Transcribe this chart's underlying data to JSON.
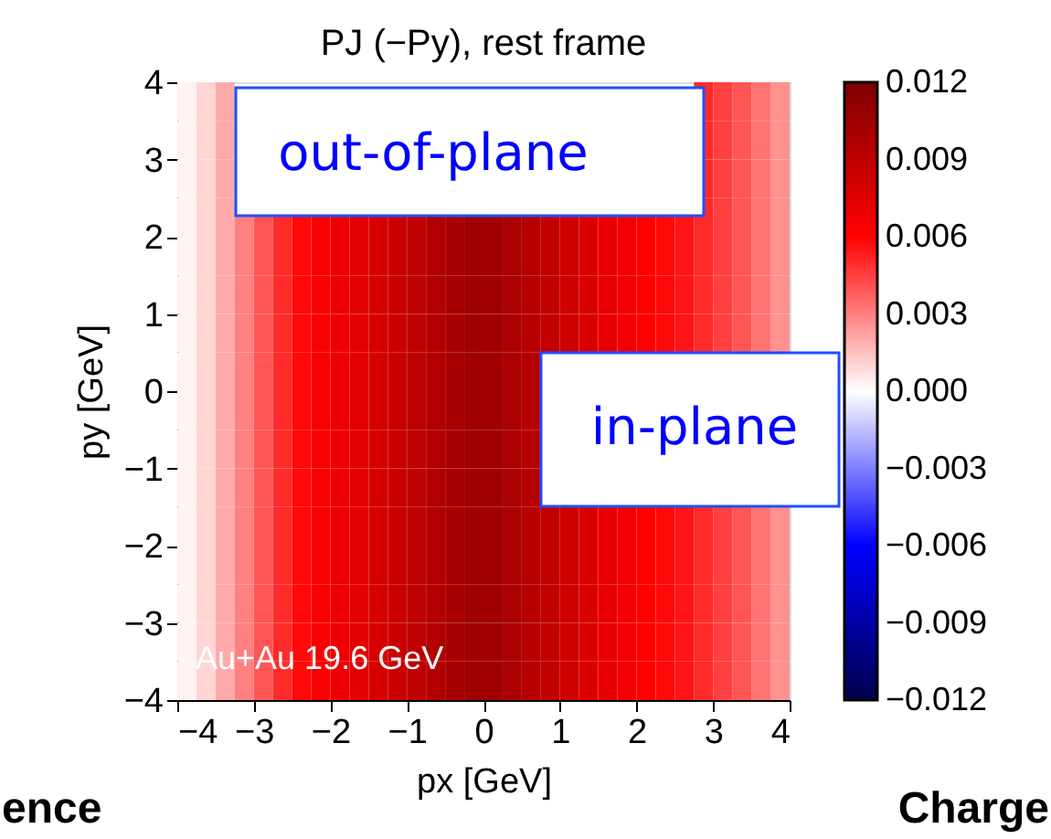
{
  "chart_data": {
    "type": "heatmap",
    "title": "PJ (−Py), rest frame",
    "xlabel": "px [GeV]",
    "ylabel": "py [GeV]",
    "annotations": [
      "out-of-plane",
      "in-plane",
      "Au+Au 19.6 GeV",
      "ence",
      "Charge"
    ],
    "x": [
      -3.875,
      -3.625,
      -3.375,
      -3.125,
      -2.875,
      -2.625,
      -2.375,
      -2.125,
      -1.875,
      -1.625,
      -1.375,
      -1.125,
      -0.875,
      -0.625,
      -0.375,
      -0.125,
      0.125,
      0.375,
      0.625,
      0.875,
      1.125,
      1.375,
      1.625,
      1.875,
      2.125,
      2.375,
      2.625,
      2.875,
      3.125,
      3.375,
      3.625,
      3.875
    ],
    "y": [
      3.75,
      3.25,
      2.75,
      2.25,
      1.75,
      1.25,
      0.75,
      0.25,
      -0.25,
      -0.75,
      -1.25,
      -1.75,
      -2.25,
      -2.75,
      -3.25,
      -3.75
    ],
    "xlim": [
      -4,
      4
    ],
    "xticks": [
      -4,
      -3,
      -2,
      -1,
      0,
      1,
      2,
      3,
      4
    ],
    "ylim": [
      -4,
      4
    ],
    "yticks": [
      -4,
      -3,
      -2,
      -1,
      0,
      1,
      2,
      3,
      4
    ],
    "clim": [
      -0.012,
      0.012
    ],
    "cticks": [
      {
        "value": 0.012,
        "label": "0.012"
      },
      {
        "value": 0.009,
        "label": "0.009"
      },
      {
        "value": 0.006,
        "label": "0.006"
      },
      {
        "value": 0.003,
        "label": "0.003"
      },
      {
        "value": 0,
        "label": "0.000"
      },
      {
        "value": -0.003,
        "label": "−0.003"
      },
      {
        "value": -0.006,
        "label": "−0.006"
      },
      {
        "value": -0.009,
        "label": "−0.009"
      },
      {
        "value": -0.012,
        "label": "−0.012"
      }
    ],
    "cells": [
      [
        0.0003,
        0.001,
        0.002,
        null,
        null,
        null,
        null,
        null,
        null,
        null,
        null,
        null,
        null,
        null,
        null,
        null,
        null,
        null,
        null,
        null,
        null,
        null,
        null,
        null,
        null,
        null,
        null,
        0.005,
        0.0045,
        0.004,
        0.0033,
        0.0026
      ],
      [
        0.0003,
        0.001,
        0.002,
        null,
        null,
        null,
        null,
        null,
        null,
        null,
        null,
        null,
        null,
        null,
        null,
        null,
        null,
        null,
        null,
        null,
        null,
        null,
        null,
        null,
        null,
        null,
        null,
        0.005,
        0.0045,
        0.004,
        0.0033,
        0.0026
      ],
      [
        0.0003,
        0.001,
        0.002,
        null,
        null,
        null,
        null,
        null,
        null,
        null,
        null,
        null,
        null,
        null,
        null,
        null,
        null,
        null,
        null,
        null,
        null,
        null,
        null,
        null,
        null,
        null,
        null,
        0.005,
        0.0045,
        0.004,
        0.0033,
        0.0026
      ],
      [
        0.0003,
        0.001,
        0.002,
        0.003,
        0.004,
        0.005,
        0.0058,
        0.0063,
        0.0068,
        0.0073,
        0.0079,
        0.0085,
        0.009,
        0.0096,
        0.0101,
        0.0105,
        0.0104,
        0.0099,
        0.0094,
        0.0088,
        0.0083,
        0.0077,
        0.0071,
        0.0066,
        0.0061,
        0.0058,
        0.0055,
        0.005,
        0.0045,
        0.004,
        0.0033,
        0.0026
      ],
      [
        0.0003,
        0.001,
        0.002,
        0.003,
        0.004,
        0.005,
        0.0058,
        0.0063,
        0.0068,
        0.0073,
        0.0079,
        0.0085,
        0.009,
        0.0096,
        0.0101,
        0.0105,
        0.0104,
        0.0099,
        0.0094,
        0.0088,
        0.0083,
        0.0077,
        0.0071,
        0.0066,
        0.0061,
        0.0058,
        0.0055,
        0.005,
        0.0045,
        0.004,
        0.0033,
        0.0026
      ],
      [
        0.0003,
        0.001,
        0.002,
        0.003,
        0.004,
        0.005,
        0.0058,
        0.0063,
        0.0068,
        0.0073,
        0.0079,
        0.0085,
        0.009,
        0.0096,
        0.0101,
        0.0105,
        0.0104,
        0.0099,
        0.0094,
        0.0088,
        0.0083,
        0.0077,
        0.0071,
        0.0066,
        0.0061,
        0.0058,
        0.0055,
        0.005,
        0.0045,
        0.004,
        0.0033,
        0.0026
      ],
      [
        0.0003,
        0.001,
        0.002,
        0.003,
        0.004,
        0.005,
        0.0058,
        0.0063,
        0.0068,
        0.0073,
        0.0079,
        0.0085,
        0.009,
        0.0096,
        0.0101,
        0.0105,
        0.0104,
        0.0099,
        0.0094,
        0.0088,
        0.0083,
        0.0077,
        0.0071,
        0.0066,
        0.0061,
        0.0058,
        0.0055,
        0.005,
        0.0045,
        0.004,
        0.0033,
        0.0026
      ],
      [
        0.0003,
        0.001,
        0.002,
        0.003,
        0.004,
        0.005,
        0.0058,
        0.0063,
        0.0068,
        0.0073,
        0.0079,
        0.0085,
        0.009,
        0.0096,
        0.0101,
        0.0105,
        0.0104,
        0.0099,
        0.0094,
        null,
        null,
        null,
        null,
        null,
        null,
        null,
        null,
        null,
        null,
        null,
        null,
        null
      ],
      [
        0.0003,
        0.001,
        0.002,
        0.003,
        0.004,
        0.005,
        0.0058,
        0.0063,
        0.0068,
        0.0073,
        0.0079,
        0.0085,
        0.009,
        0.0096,
        0.0101,
        0.0105,
        0.0104,
        0.0099,
        0.0094,
        null,
        null,
        null,
        null,
        null,
        null,
        null,
        null,
        null,
        null,
        null,
        null,
        null
      ],
      [
        0.0003,
        0.001,
        0.002,
        0.003,
        0.004,
        0.005,
        0.0058,
        0.0063,
        0.0068,
        0.0073,
        0.0079,
        0.0085,
        0.009,
        0.0096,
        0.0101,
        0.0105,
        0.0104,
        0.0099,
        0.0094,
        null,
        null,
        null,
        null,
        null,
        null,
        null,
        null,
        null,
        null,
        null,
        null,
        null
      ],
      [
        0.0003,
        0.001,
        0.002,
        0.003,
        0.004,
        0.005,
        0.0058,
        0.0063,
        0.0068,
        0.0073,
        0.0079,
        0.0085,
        0.009,
        0.0096,
        0.0101,
        0.0105,
        0.0104,
        0.0099,
        0.0094,
        null,
        null,
        null,
        null,
        null,
        null,
        null,
        null,
        null,
        null,
        null,
        null,
        null
      ],
      [
        0.0003,
        0.001,
        0.002,
        0.003,
        0.004,
        0.005,
        0.0058,
        0.0063,
        0.0068,
        0.0073,
        0.0079,
        0.0085,
        0.009,
        0.0096,
        0.0101,
        0.0105,
        0.0104,
        0.0099,
        0.0094,
        0.0088,
        0.0083,
        0.0077,
        0.0071,
        0.0066,
        0.0061,
        0.0058,
        0.0055,
        0.005,
        0.0045,
        0.004,
        0.0033,
        0.0026
      ],
      [
        0.0003,
        0.001,
        0.002,
        0.003,
        0.004,
        0.005,
        0.0058,
        0.0063,
        0.0068,
        0.0073,
        0.0079,
        0.0085,
        0.009,
        0.0096,
        0.0101,
        0.0105,
        0.0104,
        0.0099,
        0.0094,
        0.0088,
        0.0083,
        0.0077,
        0.0071,
        0.0066,
        0.0061,
        0.0058,
        0.0055,
        0.005,
        0.0045,
        0.004,
        0.0033,
        0.0026
      ],
      [
        0.0003,
        0.001,
        0.002,
        0.003,
        0.004,
        0.005,
        0.0058,
        0.0063,
        0.0068,
        0.0073,
        0.0079,
        0.0085,
        0.009,
        0.0096,
        0.0101,
        0.0105,
        0.0104,
        0.0099,
        0.0094,
        0.0088,
        0.0083,
        0.0077,
        0.0071,
        0.0066,
        0.0061,
        0.0058,
        0.0055,
        0.005,
        0.0045,
        0.004,
        0.0033,
        0.0026
      ],
      [
        0.0003,
        0.001,
        0.002,
        0.003,
        0.004,
        0.005,
        0.0058,
        0.0063,
        0.0068,
        0.0073,
        0.0079,
        0.0085,
        0.009,
        0.0096,
        0.0101,
        0.0105,
        0.0104,
        0.0099,
        0.0094,
        0.0088,
        0.0083,
        0.0077,
        0.0071,
        0.0066,
        0.0061,
        0.0058,
        0.0055,
        0.005,
        0.0045,
        0.004,
        0.0033,
        0.0026
      ],
      [
        0.0003,
        0.001,
        0.002,
        0.003,
        0.004,
        0.005,
        0.0058,
        0.0063,
        0.0068,
        0.0073,
        0.0079,
        0.0085,
        0.009,
        0.0096,
        0.0101,
        0.0105,
        0.0104,
        0.0099,
        0.0094,
        0.0088,
        0.0083,
        0.0077,
        0.0071,
        0.0066,
        0.0061,
        0.0058,
        0.0055,
        0.005,
        0.0045,
        0.004,
        0.0033,
        0.0026
      ]
    ]
  }
}
